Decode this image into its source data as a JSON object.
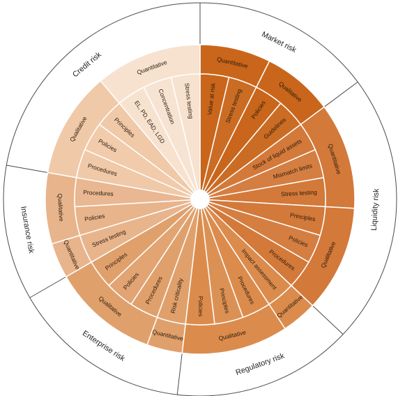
{
  "colors": {
    "outer_ring": "#ffffff",
    "outer_stroke": "#4a4a4a",
    "separator": "#ffffff",
    "text_dark": "#2a1a0a",
    "text_light": "#ffffff"
  },
  "categories": [
    {
      "name": "Market risk",
      "groups": [
        {
          "label": "Quantitative",
          "color": "#c9661b",
          "leaves": [
            "Value at risk",
            "Stress testing"
          ]
        },
        {
          "label": "Qualitative",
          "color": "#c9661b",
          "leaves": [
            "Policies",
            "Guidelines"
          ]
        }
      ]
    },
    {
      "name": "Liquidity risk",
      "groups": [
        {
          "label": "Quantitative",
          "color": "#d3793a",
          "leaves": [
            "Stock of liquid assets",
            "Mismatch limits",
            "Stress testing"
          ]
        },
        {
          "label": "Qualitative",
          "color": "#d3793a",
          "leaves": [
            "Principles",
            "Policies",
            "Procedures"
          ]
        }
      ]
    },
    {
      "name": "Regulatory risk",
      "groups": [
        {
          "label": "Quantitative",
          "color": "#db8c4d",
          "leaves": [
            "Impact assessment"
          ]
        },
        {
          "label": "Qualitative",
          "color": "#db8c4d",
          "leaves": [
            "Procedures",
            "Principles",
            "Policies"
          ]
        }
      ]
    },
    {
      "name": "Enterprise risk",
      "groups": [
        {
          "label": "Quantitative",
          "color": "#e0a06c",
          "leaves": [
            "Risk criticality"
          ]
        },
        {
          "label": "Qualitative",
          "color": "#e0a06c",
          "leaves": [
            "Procedures",
            "Policies",
            "Principles"
          ]
        }
      ]
    },
    {
      "name": "Insurance risk",
      "groups": [
        {
          "label": "Quantitative",
          "color": "#e8b48c",
          "leaves": [
            "Stress testing"
          ]
        },
        {
          "label": "Qualitative",
          "color": "#e8b48c",
          "leaves": [
            "Policies",
            "Procedures"
          ]
        }
      ]
    },
    {
      "name": "Credit risk",
      "groups": [
        {
          "label": "Qualitative",
          "color": "#f0c9a8",
          "leaves": [
            "Procedures",
            "Policies",
            "Principles"
          ]
        },
        {
          "label": "Quantitative",
          "color": "#f7e2d0",
          "leaves": [
            "EL, PD, EAD, LGD",
            "Concentration",
            "Stress testing"
          ]
        }
      ]
    }
  ]
}
